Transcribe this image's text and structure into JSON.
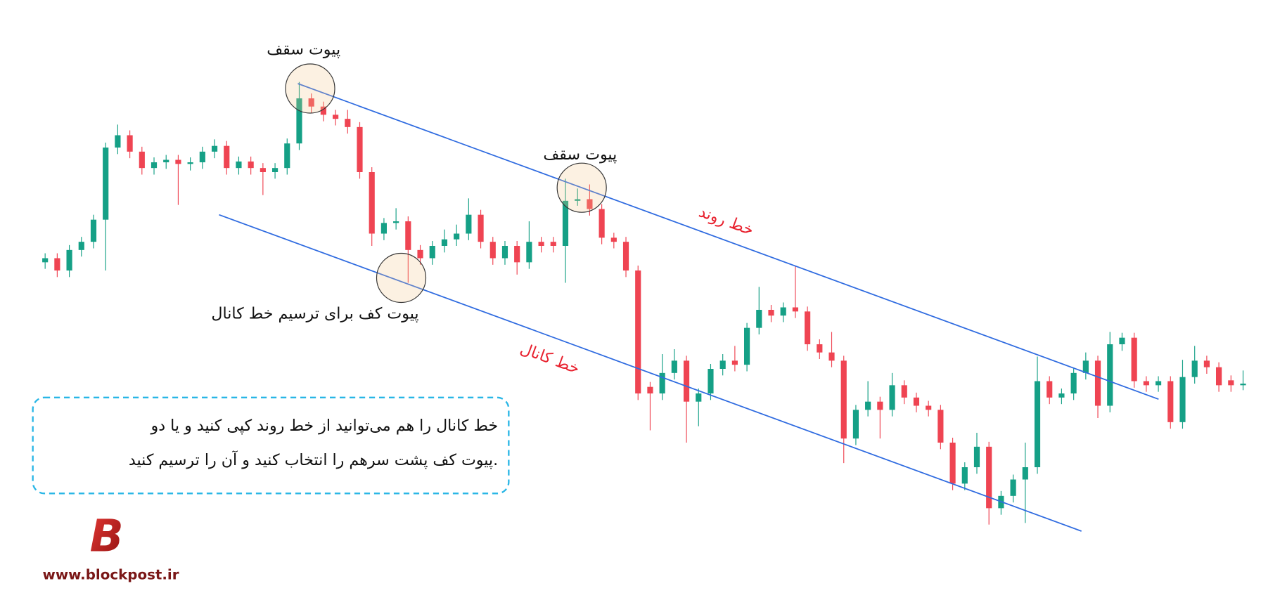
{
  "chart_data": {
    "type": "candlestick",
    "open": [
      380,
      385,
      370,
      395,
      405,
      432,
      520,
      535,
      515,
      495,
      502,
      505,
      500,
      502,
      515,
      522,
      495,
      503,
      495,
      490,
      495,
      525,
      580,
      570,
      560,
      555,
      545,
      490,
      415,
      428,
      430,
      395,
      385,
      400,
      408,
      415,
      438,
      405,
      385,
      400,
      380,
      405,
      405,
      400,
      455,
      457,
      445,
      410,
      405,
      370,
      228,
      220,
      245,
      260,
      210,
      220,
      250,
      260,
      255,
      300,
      322,
      315,
      325,
      320,
      280,
      270,
      260,
      165,
      200,
      210,
      200,
      230,
      215,
      205,
      200,
      160,
      110,
      130,
      155,
      80,
      95,
      115,
      130,
      235,
      215,
      220,
      245,
      260,
      205,
      280,
      288,
      235,
      230,
      235,
      185,
      240,
      260,
      252,
      236,
      230
    ],
    "high": [
      391,
      391,
      401,
      411,
      438,
      526,
      548,
      541,
      521,
      508,
      511,
      511,
      508,
      521,
      530,
      528,
      509,
      509,
      501,
      501,
      531,
      600,
      586,
      576,
      566,
      566,
      551,
      496,
      434,
      446,
      436,
      401,
      406,
      420,
      426,
      458,
      444,
      411,
      406,
      406,
      430,
      411,
      411,
      482,
      470,
      475,
      451,
      416,
      411,
      376,
      234,
      268,
      274,
      266,
      226,
      256,
      268,
      278,
      306,
      350,
      328,
      331,
      375,
      326,
      286,
      295,
      266,
      206,
      235,
      216,
      245,
      236,
      221,
      211,
      206,
      166,
      136,
      172,
      161,
      101,
      121,
      160,
      265,
      241,
      226,
      251,
      270,
      266,
      295,
      294,
      294,
      241,
      241,
      241,
      261,
      278,
      266,
      258,
      242,
      248
    ],
    "low": [
      372,
      362,
      362,
      387,
      397,
      370,
      512,
      507,
      487,
      487,
      494,
      450,
      492,
      494,
      507,
      487,
      487,
      487,
      462,
      482,
      487,
      517,
      562,
      552,
      547,
      537,
      482,
      400,
      407,
      420,
      355,
      377,
      377,
      392,
      400,
      407,
      397,
      377,
      377,
      365,
      372,
      392,
      392,
      355,
      449,
      437,
      402,
      397,
      362,
      212,
      175,
      212,
      237,
      160,
      180,
      212,
      242,
      247,
      247,
      292,
      307,
      307,
      312,
      272,
      262,
      252,
      135,
      157,
      192,
      165,
      192,
      207,
      197,
      192,
      152,
      102,
      102,
      122,
      60,
      72,
      87,
      62,
      122,
      207,
      207,
      212,
      237,
      190,
      197,
      272,
      227,
      222,
      222,
      177,
      177,
      232,
      244,
      222,
      222,
      224
    ],
    "close": [
      385,
      370,
      395,
      405,
      432,
      520,
      535,
      515,
      495,
      502,
      505,
      500,
      502,
      515,
      522,
      495,
      503,
      495,
      490,
      495,
      525,
      580,
      570,
      560,
      555,
      545,
      490,
      415,
      428,
      430,
      395,
      385,
      400,
      408,
      415,
      438,
      405,
      385,
      400,
      380,
      405,
      400,
      400,
      455,
      457,
      445,
      410,
      405,
      370,
      220,
      220,
      245,
      260,
      210,
      220,
      250,
      260,
      255,
      300,
      322,
      315,
      325,
      320,
      280,
      270,
      260,
      165,
      200,
      210,
      200,
      230,
      215,
      205,
      200,
      160,
      110,
      130,
      155,
      80,
      95,
      115,
      130,
      235,
      215,
      220,
      245,
      260,
      205,
      280,
      288,
      235,
      230,
      235,
      185,
      240,
      260,
      252,
      230,
      230,
      232
    ],
    "up_color": "#15a086",
    "down_color": "#ef4452",
    "ylim": [
      0,
      700
    ]
  },
  "annotations": {
    "top_pivot_1": "پیوت سقف",
    "top_pivot_2": "پیوت سقف",
    "trend_line": "خط روند",
    "bottom_pivot": "پیوت کف برای ترسیم خط کانال",
    "channel_line": "خط کانال"
  },
  "callout": {
    "line1": "خط کانال را هم می‌توانید از خط روند کپی کنید و یا دو",
    "line2": "پیوت کف پشت سرهم را انتخاب کنید و آن را ترسیم کنید."
  },
  "logo": {
    "letter": "B",
    "url": "www.blockpost.ir"
  }
}
